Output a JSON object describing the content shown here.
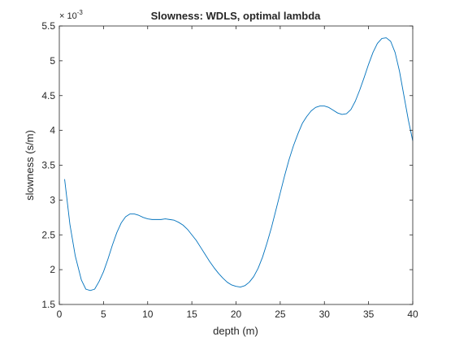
{
  "chart_data": {
    "type": "line",
    "title": "Slowness: WDLS, optimal lambda",
    "xlabel": "depth (m)",
    "ylabel": "slowness (s/m)",
    "exponent_label": "× 10",
    "exponent_power": "-3",
    "xlim": [
      0,
      40
    ],
    "ylim": [
      1.5,
      5.5
    ],
    "xticks": [
      0,
      5,
      10,
      15,
      20,
      25,
      30,
      35,
      40
    ],
    "yticks": [
      1.5,
      2,
      2.5,
      3,
      3.5,
      4,
      4.5,
      5,
      5.5
    ],
    "ytick_labels": [
      "1.5",
      "2",
      "2.5",
      "3",
      "3.5",
      "4",
      "4.5",
      "5",
      "5.5"
    ],
    "grid": false,
    "line_color": "#0072BD",
    "series": [
      {
        "x": [
          0.6,
          1.2,
          1.8,
          2.5,
          3.0,
          3.5,
          4.0,
          4.5,
          5.0,
          5.5,
          6.0,
          6.5,
          7.0,
          7.5,
          8.0,
          8.5,
          9.0,
          9.5,
          10.0,
          10.5,
          11.0,
          11.5,
          12.0,
          12.5,
          13.0,
          13.5,
          14.0,
          14.5,
          15.0,
          15.5,
          16.0,
          16.5,
          17.0,
          17.5,
          18.0,
          18.5,
          19.0,
          19.5,
          20.0,
          20.5,
          21.0,
          21.5,
          22.0,
          22.5,
          23.0,
          23.5,
          24.0,
          24.5,
          25.0,
          25.5,
          26.0,
          26.5,
          27.0,
          27.5,
          28.0,
          28.5,
          29.0,
          29.5,
          30.0,
          30.5,
          31.0,
          31.5,
          32.0,
          32.5,
          33.0,
          33.5,
          34.0,
          34.5,
          35.0,
          35.5,
          36.0,
          36.5,
          37.0,
          37.5,
          38.0,
          38.5,
          39.0,
          39.5,
          40.0
        ],
        "y": [
          3.3,
          2.65,
          2.2,
          1.85,
          1.72,
          1.7,
          1.72,
          1.83,
          1.97,
          2.15,
          2.35,
          2.53,
          2.67,
          2.76,
          2.8,
          2.8,
          2.78,
          2.75,
          2.73,
          2.72,
          2.72,
          2.72,
          2.73,
          2.72,
          2.71,
          2.68,
          2.64,
          2.58,
          2.5,
          2.42,
          2.32,
          2.22,
          2.12,
          2.03,
          1.95,
          1.88,
          1.82,
          1.78,
          1.76,
          1.75,
          1.77,
          1.82,
          1.9,
          2.02,
          2.18,
          2.38,
          2.6,
          2.85,
          3.1,
          3.35,
          3.58,
          3.78,
          3.95,
          4.1,
          4.2,
          4.28,
          4.33,
          4.35,
          4.35,
          4.33,
          4.29,
          4.25,
          4.23,
          4.24,
          4.3,
          4.42,
          4.58,
          4.76,
          4.95,
          5.12,
          5.25,
          5.32,
          5.33,
          5.28,
          5.12,
          4.85,
          4.5,
          4.15,
          3.85
        ]
      }
    ]
  }
}
